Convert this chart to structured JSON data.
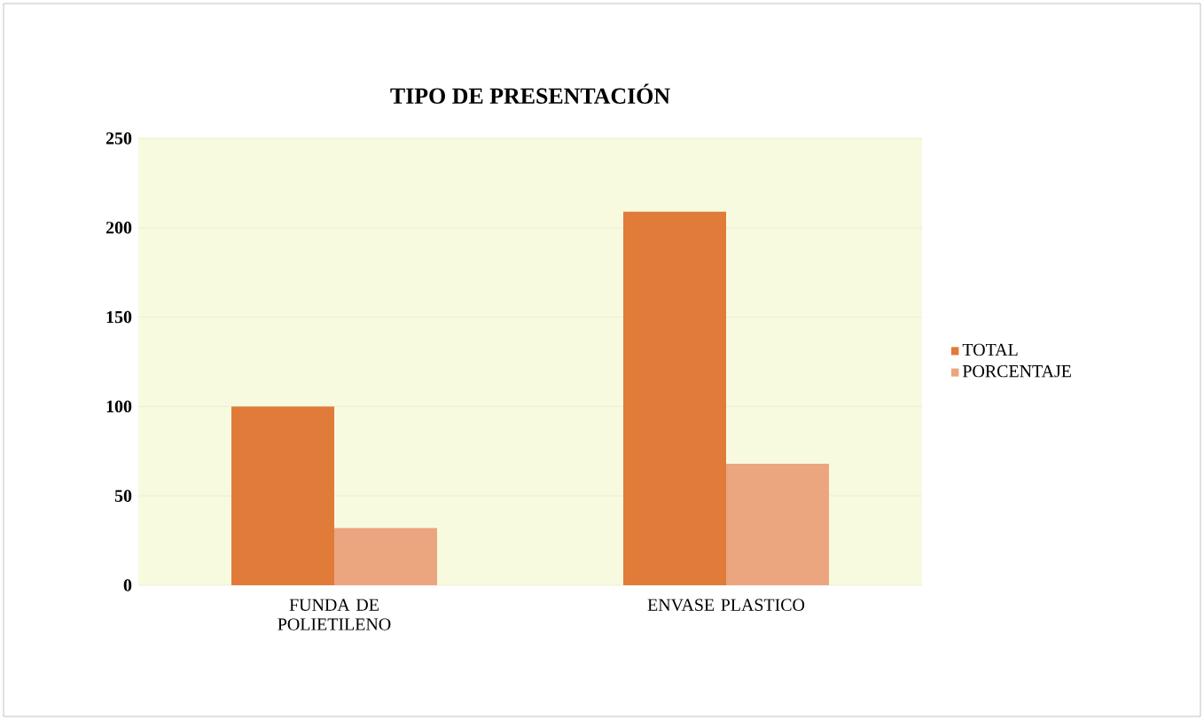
{
  "chart_data": {
    "type": "bar",
    "title": "TIPO DE PRESENTACIÓN",
    "categories": [
      "FUNDA DE POLIETILENO",
      "ENVASE PLASTICO"
    ],
    "series": [
      {
        "name": "TOTAL",
        "color": "#e07b39",
        "values": [
          100,
          209
        ]
      },
      {
        "name": "PORCENTAJE",
        "color": "#eba57f",
        "values": [
          32,
          68
        ]
      }
    ],
    "ylim": [
      0,
      250
    ],
    "yticks": [
      0,
      50,
      100,
      150,
      200,
      250
    ],
    "grid": "y",
    "legend": "right"
  }
}
